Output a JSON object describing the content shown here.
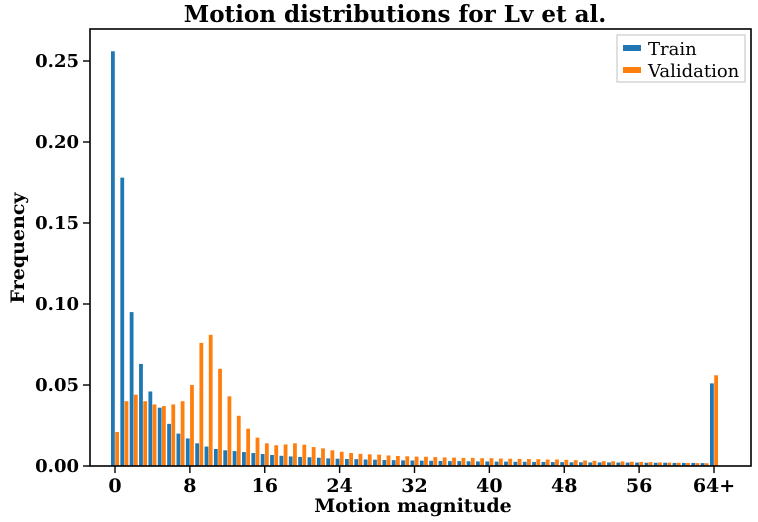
{
  "chart_data": {
    "type": "bar",
    "title": "Motion distributions for Lv et al.",
    "xlabel": "Motion magnitude",
    "ylabel": "Frequency",
    "xlim": [
      -2.7,
      68
    ],
    "ylim": [
      0,
      0.27
    ],
    "grid": false,
    "legend_position": "upper right",
    "xticks": {
      "positions": [
        0,
        8,
        16,
        24,
        32,
        40,
        48,
        56,
        64
      ],
      "labels": [
        "0",
        "8",
        "16",
        "24",
        "32",
        "40",
        "48",
        "56",
        "64+"
      ]
    },
    "yticks": {
      "positions": [
        0,
        0.05,
        0.1,
        0.15,
        0.2,
        0.25
      ],
      "labels": [
        "0.00",
        "0.05",
        "0.10",
        "0.15",
        "0.20",
        "0.25"
      ]
    },
    "categories": [
      0,
      1,
      2,
      3,
      4,
      5,
      6,
      7,
      8,
      9,
      10,
      11,
      12,
      13,
      14,
      15,
      16,
      17,
      18,
      19,
      20,
      21,
      22,
      23,
      24,
      25,
      26,
      27,
      28,
      29,
      30,
      31,
      32,
      33,
      34,
      35,
      36,
      37,
      38,
      39,
      40,
      41,
      42,
      43,
      44,
      45,
      46,
      47,
      48,
      49,
      50,
      51,
      52,
      53,
      54,
      55,
      56,
      57,
      58,
      59,
      60,
      61,
      62,
      63,
      "64+"
    ],
    "bar_width_units": 0.4,
    "series": [
      {
        "name": "Train",
        "color": "#1f77b4",
        "values": [
          0.256,
          0.178,
          0.095,
          0.063,
          0.046,
          0.036,
          0.026,
          0.02,
          0.017,
          0.014,
          0.012,
          0.0105,
          0.0097,
          0.0092,
          0.0086,
          0.008,
          0.0074,
          0.0068,
          0.0063,
          0.0059,
          0.0056,
          0.0054,
          0.0051,
          0.0047,
          0.0045,
          0.0043,
          0.0042,
          0.004,
          0.0039,
          0.0037,
          0.0036,
          0.0035,
          0.0034,
          0.0033,
          0.0032,
          0.0031,
          0.003,
          0.003,
          0.0029,
          0.0028,
          0.0028,
          0.0027,
          0.0027,
          0.0026,
          0.0026,
          0.0025,
          0.0025,
          0.0024,
          0.0024,
          0.0023,
          0.0023,
          0.0022,
          0.0022,
          0.0022,
          0.0021,
          0.0021,
          0.0021,
          0.002,
          0.002,
          0.002,
          0.0019,
          0.0019,
          0.0019,
          0.0018,
          0.051
        ]
      },
      {
        "name": "Validation",
        "color": "#ff7f0e",
        "values": [
          0.021,
          0.04,
          0.044,
          0.04,
          0.038,
          0.037,
          0.038,
          0.04,
          0.05,
          0.076,
          0.081,
          0.06,
          0.043,
          0.031,
          0.023,
          0.0175,
          0.014,
          0.0128,
          0.0133,
          0.014,
          0.0132,
          0.0117,
          0.0109,
          0.0097,
          0.0088,
          0.008,
          0.0075,
          0.0072,
          0.007,
          0.0065,
          0.0062,
          0.006,
          0.0058,
          0.0057,
          0.0055,
          0.0053,
          0.0052,
          0.005,
          0.005,
          0.0048,
          0.0048,
          0.0046,
          0.0045,
          0.0044,
          0.0043,
          0.0042,
          0.004,
          0.004,
          0.0038,
          0.0036,
          0.0034,
          0.0032,
          0.003,
          0.0029,
          0.0028,
          0.0026,
          0.0025,
          0.0024,
          0.0022,
          0.0021,
          0.002,
          0.0019,
          0.0018,
          0.0017,
          0.056
        ]
      }
    ],
    "colors": {
      "train": "#1f77b4",
      "validation": "#ff7f0e",
      "spine": "#000000",
      "background": "#ffffff"
    }
  }
}
